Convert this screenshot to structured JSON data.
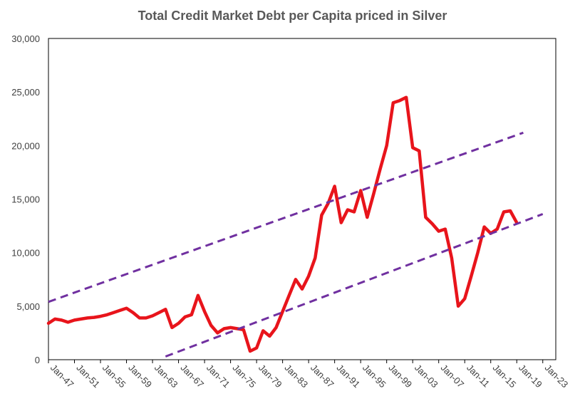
{
  "chart_data": {
    "type": "line",
    "title": "Total Credit Market Debt per Capita priced in Silver",
    "xlabel": "",
    "ylabel": "",
    "ylim": [
      0,
      30000
    ],
    "yticks": [
      0,
      5000,
      10000,
      15000,
      20000,
      25000,
      30000
    ],
    "ytick_labels": [
      "0",
      "5,000",
      "10,000",
      "15,000",
      "20,000",
      "25,000",
      "30,000"
    ],
    "xlim": [
      1947,
      2025
    ],
    "xticks": [
      1947,
      1951,
      1955,
      1959,
      1963,
      1967,
      1971,
      1975,
      1979,
      1983,
      1987,
      1991,
      1995,
      1999,
      2003,
      2007,
      2011,
      2015,
      2019,
      2023
    ],
    "xtick_labels": [
      "Jan-47",
      "Jan-51",
      "Jan-55",
      "Jan-59",
      "Jan-63",
      "Jan-67",
      "Jan-71",
      "Jan-75",
      "Jan-79",
      "Jan-83",
      "Jan-87",
      "Jan-91",
      "Jan-95",
      "Jan-99",
      "Jan-03",
      "Jan-07",
      "Jan-11",
      "Jan-15",
      "Jan-19",
      "Jan-23"
    ],
    "grid": false,
    "series": [
      {
        "name": "",
        "color": "#e8141b",
        "style": "solid",
        "x": [
          1947,
          1948,
          1949,
          1950,
          1951,
          1952,
          1953,
          1954,
          1955,
          1956,
          1957,
          1958,
          1959,
          1960,
          1961,
          1962,
          1963,
          1964,
          1965,
          1966,
          1967,
          1968,
          1969,
          1970,
          1971,
          1972,
          1973,
          1974,
          1975,
          1976,
          1977,
          1978,
          1979,
          1980,
          1981,
          1982,
          1983,
          1984,
          1985,
          1986,
          1987,
          1988,
          1989,
          1990,
          1991,
          1992,
          1993,
          1994,
          1995,
          1996,
          1997,
          1998,
          1999,
          2000,
          2001,
          2002,
          2003,
          2004,
          2005,
          2006,
          2007,
          2008,
          2009,
          2010,
          2011,
          2012,
          2013,
          2014,
          2015,
          2016,
          2017,
          2018,
          2019
        ],
        "y": [
          3400,
          3800,
          3700,
          3500,
          3700,
          3800,
          3900,
          3950,
          4050,
          4200,
          4400,
          4600,
          4800,
          4400,
          3900,
          3900,
          4100,
          4400,
          4700,
          3000,
          3400,
          4000,
          4200,
          6000,
          4500,
          3200,
          2500,
          2900,
          3000,
          2900,
          2800,
          800,
          1100,
          2700,
          2200,
          3000,
          4500,
          6000,
          7500,
          6600,
          7800,
          9500,
          13500,
          14600,
          16200,
          12800,
          14000,
          13800,
          15800,
          13300,
          15500,
          17800,
          20000,
          24000,
          24200,
          24500,
          19800,
          19500,
          13300,
          12700,
          12000,
          12200,
          9500,
          5000,
          5700,
          7800,
          10000,
          12400,
          11800,
          12200,
          13800,
          13900,
          12800
        ]
      },
      {
        "name": "",
        "color": "#7030a0",
        "style": "dashed",
        "x": [
          1947,
          2020
        ],
        "y": [
          5400,
          21200
        ]
      },
      {
        "name": "",
        "color": "#7030a0",
        "style": "dashed",
        "x": [
          1965,
          2023
        ],
        "y": [
          300,
          13600
        ]
      }
    ]
  }
}
